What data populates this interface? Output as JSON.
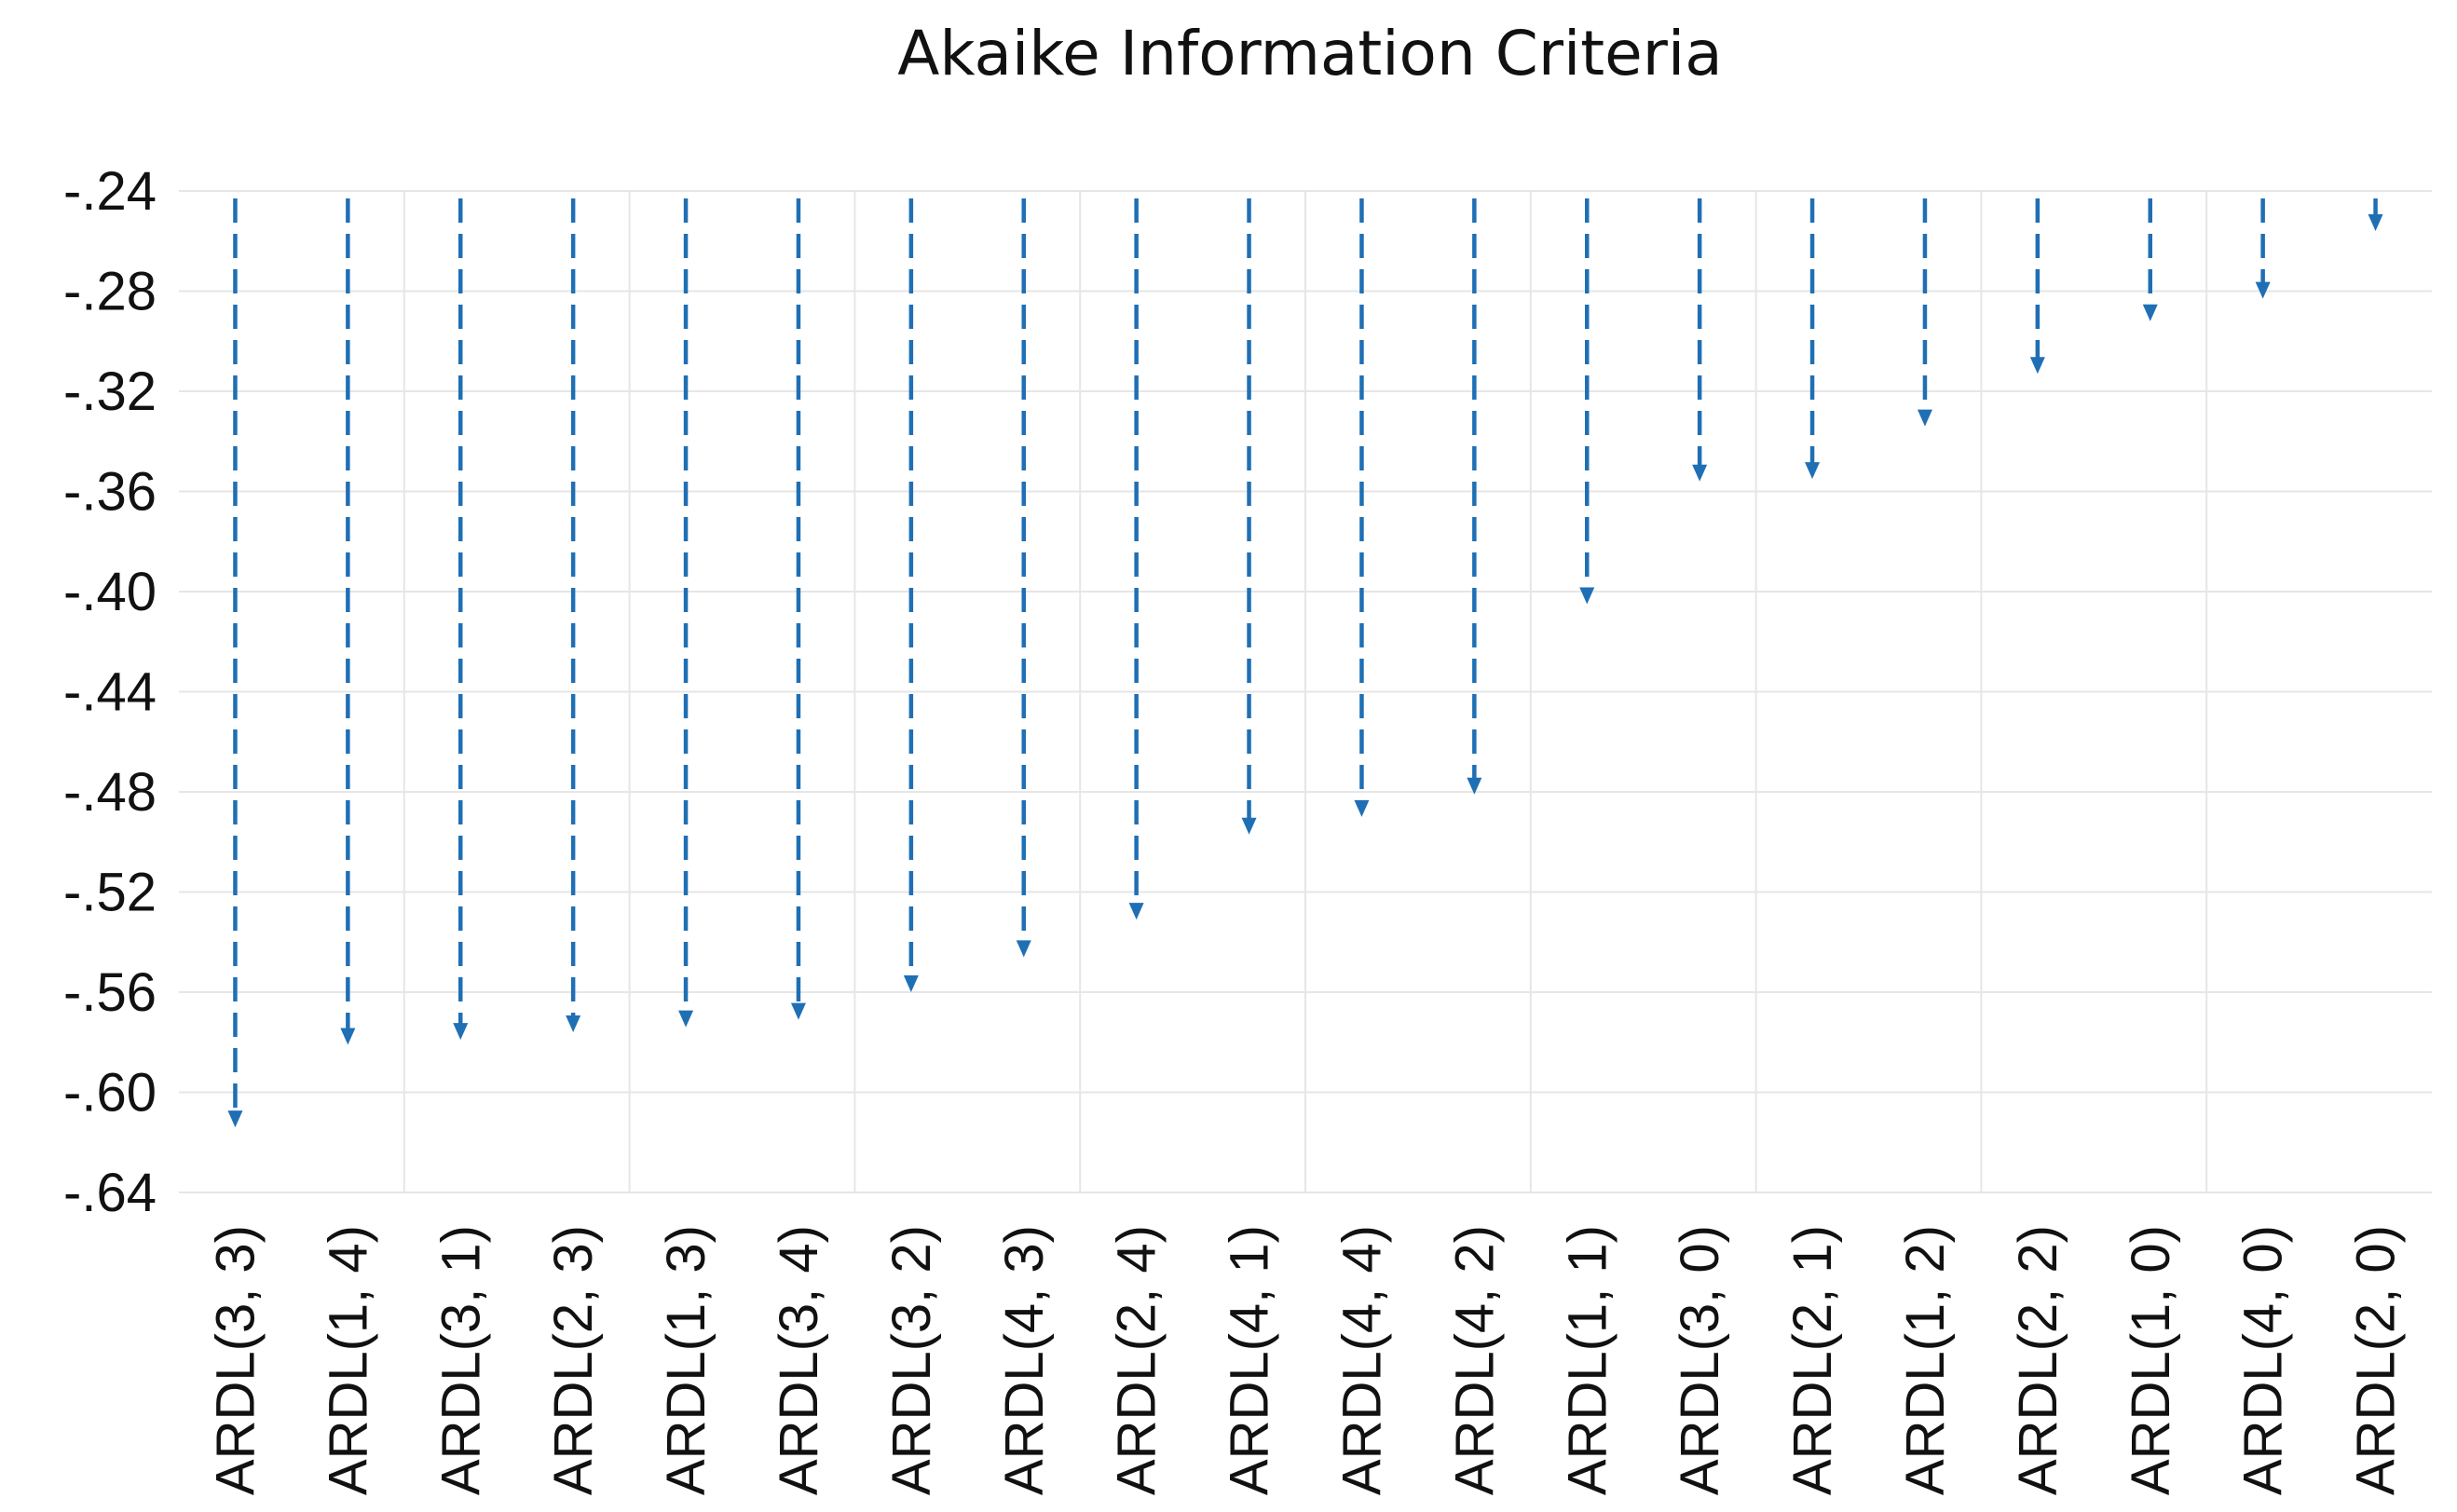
{
  "chart_data": {
    "type": "scatter",
    "title": "Akaike Information Criteria",
    "xlabel": "",
    "ylabel": "",
    "categories": [
      "ARDL(3, 3)",
      "ARDL(1, 4)",
      "ARDL(3, 1)",
      "ARDL(2, 3)",
      "ARDL(1, 3)",
      "ARDL(3, 4)",
      "ARDL(3, 2)",
      "ARDL(4, 3)",
      "ARDL(2, 4)",
      "ARDL(4, 1)",
      "ARDL(4, 4)",
      "ARDL(4, 2)",
      "ARDL(1, 1)",
      "ARDL(3, 0)",
      "ARDL(2, 1)",
      "ARDL(1, 2)",
      "ARDL(2, 2)",
      "ARDL(1, 0)",
      "ARDL(4, 0)",
      "ARDL(2, 0)"
    ],
    "series": [
      {
        "values": [
          -0.614,
          -0.581,
          -0.579,
          -0.576,
          -0.574,
          -0.571,
          -0.56,
          -0.546,
          -0.531,
          -0.497,
          -0.49,
          -0.481,
          -0.405,
          -0.356,
          -0.355,
          -0.334,
          -0.313,
          -0.292,
          -0.283,
          -0.256
        ]
      }
    ],
    "ylim": [
      -0.64,
      -0.24
    ],
    "yticks": [
      -0.24,
      -0.28,
      -0.32,
      -0.36,
      -0.4,
      -0.44,
      -0.48,
      -0.52,
      -0.56,
      -0.6,
      -0.64
    ],
    "ytick_labels": [
      "-.24",
      "-.28",
      "-.32",
      "-.36",
      "-.40",
      "-.44",
      "-.48",
      "-.52",
      "-.56",
      "-.60",
      "-.64"
    ],
    "grid": true,
    "marker_style": "dashed drop arrow from top of axis to value",
    "color": "#1f6fb5",
    "grid_color": "#e6e6e6"
  }
}
